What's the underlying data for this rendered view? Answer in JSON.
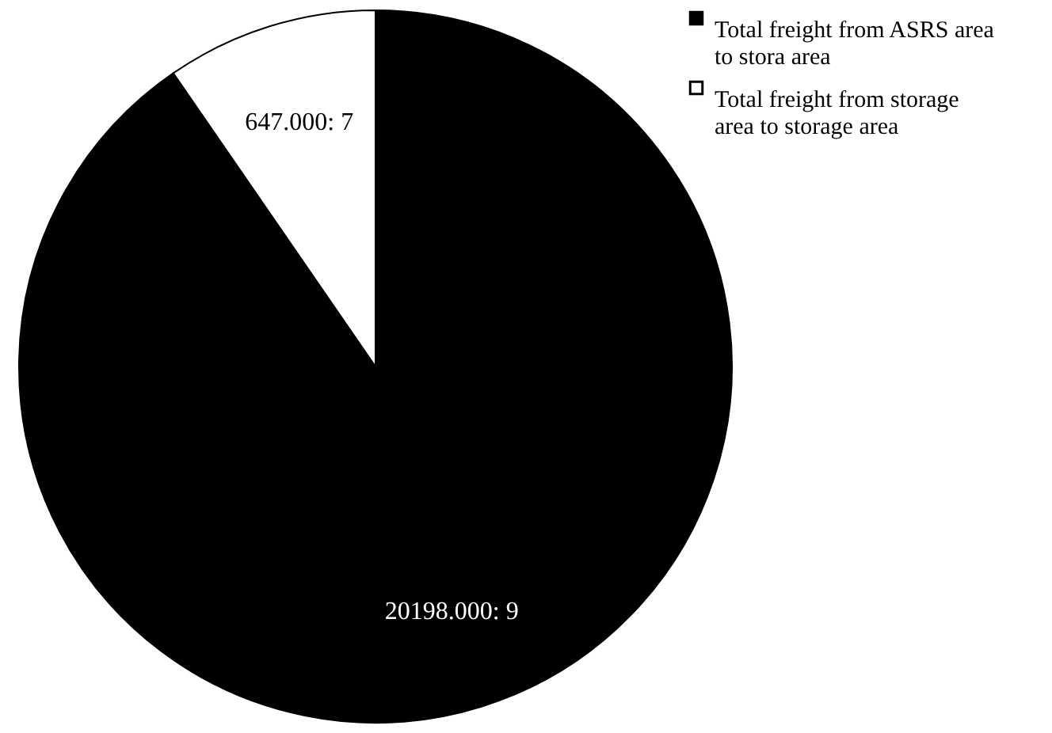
{
  "chart_data": {
    "type": "pie",
    "categories": [
      "Total freight from ASRS area to stora area",
      "Total freight from storage area to storage area"
    ],
    "values": [
      90.4,
      9.6
    ],
    "colors": [
      "#000000",
      "#ffffff"
    ],
    "value_labels": [
      "20198.000: 9",
      "647.000: 7"
    ],
    "legend": "top right"
  }
}
